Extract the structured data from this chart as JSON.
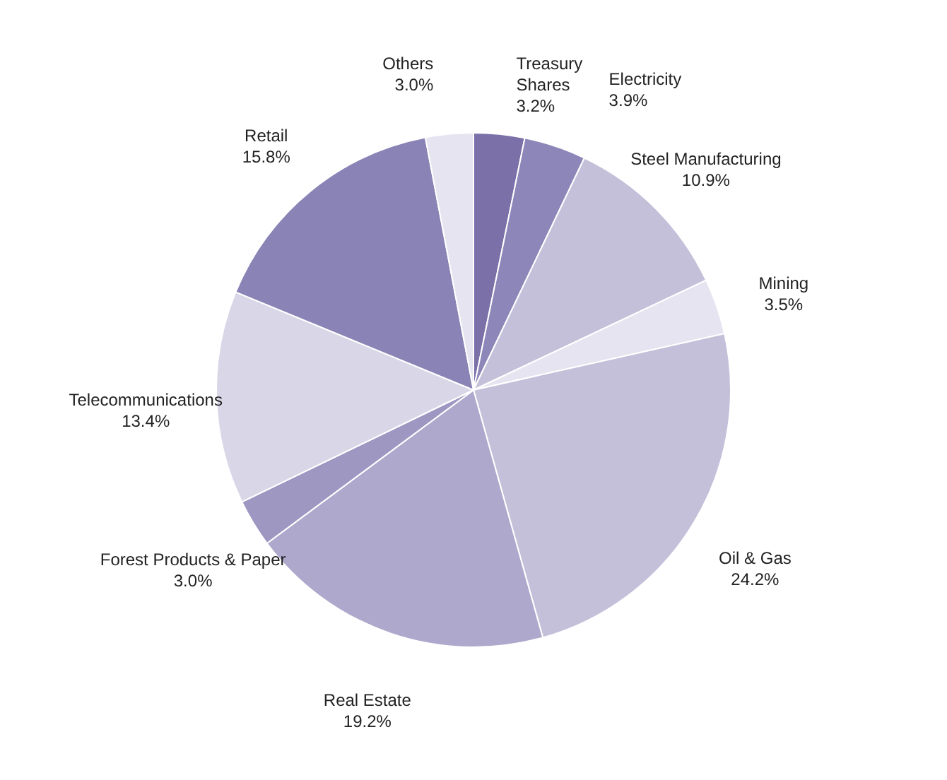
{
  "chart_data": {
    "type": "pie",
    "categories": [
      "Treasury Shares",
      "Electricity",
      "Steel Manufacturing",
      "Mining",
      "Oil & Gas",
      "Real Estate",
      "Forest Products & Paper",
      "Telecommunications",
      "Retail",
      "Others"
    ],
    "values": [
      3.2,
      3.9,
      10.9,
      3.5,
      24.2,
      19.2,
      3.0,
      13.4,
      15.8,
      3.0
    ],
    "value_labels": [
      "3.2%",
      "3.9%",
      "10.9%",
      "3.5%",
      "24.2%",
      "19.2%",
      "3.0%",
      "13.4%",
      "15.8%",
      "3.0%"
    ],
    "colors": [
      "#7b70a8",
      "#8d86b8",
      "#c4c0da",
      "#e6e4f0",
      "#c4c0da",
      "#aea8cc",
      "#9d97c2",
      "#d9d6e8",
      "#8a83b5",
      "#e6e4f0"
    ]
  }
}
